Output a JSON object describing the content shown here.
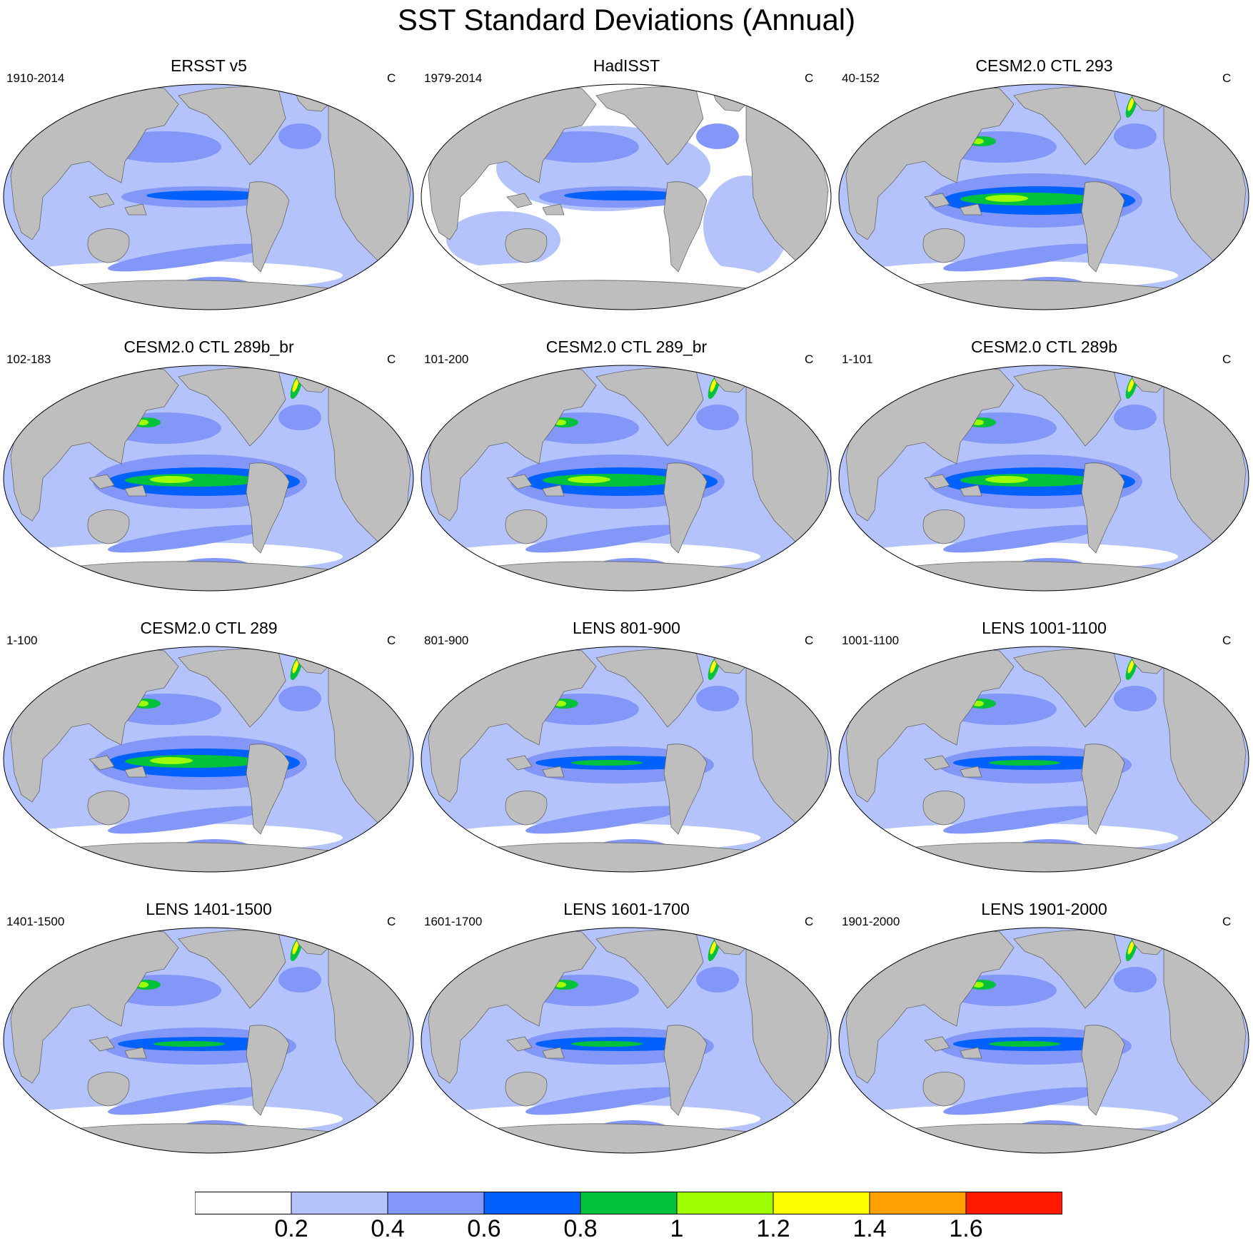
{
  "title": "SST Standard Deviations (Annual)",
  "panels": [
    {
      "title": "ERSST v5",
      "period": "1910-2014",
      "unit": "C",
      "pattern": "obs_e"
    },
    {
      "title": "HadISST",
      "period": "1979-2014",
      "unit": "C",
      "pattern": "obs_h"
    },
    {
      "title": "CESM2.0 CTL 293",
      "period": "40-152",
      "unit": "C",
      "pattern": "strong"
    },
    {
      "title": "CESM2.0 CTL 289b_br",
      "period": "102-183",
      "unit": "C",
      "pattern": "strong"
    },
    {
      "title": "CESM2.0 CTL 289_br",
      "period": "101-200",
      "unit": "C",
      "pattern": "strong"
    },
    {
      "title": "CESM2.0 CTL 289b",
      "period": "1-101",
      "unit": "C",
      "pattern": "strong"
    },
    {
      "title": "CESM2.0 CTL 289",
      "period": "1-100",
      "unit": "C",
      "pattern": "strong"
    },
    {
      "title": "LENS 801-900",
      "period": "801-900",
      "unit": "C",
      "pattern": "lens"
    },
    {
      "title": "LENS 1001-1100",
      "period": "1001-1100",
      "unit": "C",
      "pattern": "lens"
    },
    {
      "title": "LENS 1401-1500",
      "period": "1401-1500",
      "unit": "C",
      "pattern": "lens"
    },
    {
      "title": "LENS 1601-1700",
      "period": "1601-1700",
      "unit": "C",
      "pattern": "lens"
    },
    {
      "title": "LENS 1901-2000",
      "period": "1901-2000",
      "unit": "C",
      "pattern": "lens"
    }
  ],
  "colorbar": {
    "colors": [
      "#ffffff",
      "#b4c3fc",
      "#8397f8",
      "#0061fe",
      "#00c13b",
      "#9dff00",
      "#ffff00",
      "#ffa000",
      "#ff1a00"
    ],
    "labels": [
      "0.2",
      "0.4",
      "0.6",
      "0.8",
      "1",
      "1.2",
      "1.4",
      "1.6"
    ]
  },
  "land_color": "#bebebe"
}
